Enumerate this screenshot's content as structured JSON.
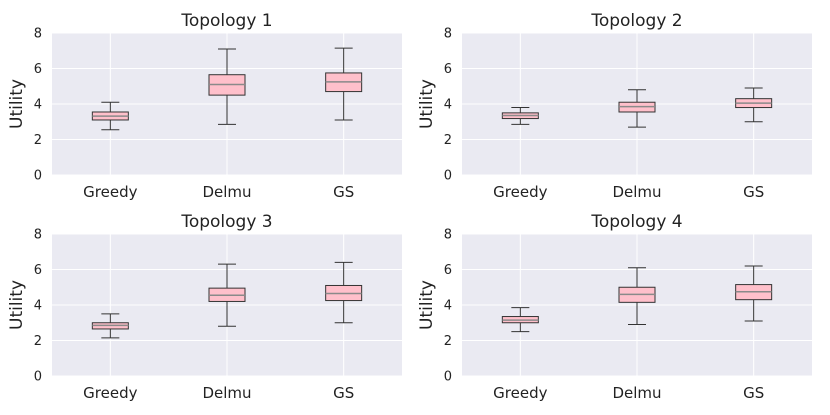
{
  "chart_data": [
    {
      "type": "box",
      "title": "Topology 1",
      "ylabel": "Utility",
      "ylim": [
        0,
        8
      ],
      "yticks": [
        "0",
        "2",
        "4",
        "6",
        "8"
      ],
      "categories": [
        "Greedy",
        "Delmu",
        "GS"
      ],
      "boxes": [
        {
          "whisker_low": 2.55,
          "q1": 3.1,
          "median": 3.32,
          "q3": 3.55,
          "whisker_high": 4.1
        },
        {
          "whisker_low": 2.85,
          "q1": 4.5,
          "median": 5.1,
          "q3": 5.65,
          "whisker_high": 7.1
        },
        {
          "whisker_low": 3.1,
          "q1": 4.7,
          "median": 5.25,
          "q3": 5.75,
          "whisker_high": 7.15
        }
      ]
    },
    {
      "type": "box",
      "title": "Topology 2",
      "ylabel": "Utility",
      "ylim": [
        0,
        8
      ],
      "yticks": [
        "0",
        "2",
        "4",
        "6",
        "8"
      ],
      "categories": [
        "Greedy",
        "Delmu",
        "GS"
      ],
      "boxes": [
        {
          "whisker_low": 2.85,
          "q1": 3.18,
          "median": 3.35,
          "q3": 3.5,
          "whisker_high": 3.8
        },
        {
          "whisker_low": 2.7,
          "q1": 3.55,
          "median": 3.85,
          "q3": 4.1,
          "whisker_high": 4.8
        },
        {
          "whisker_low": 3.0,
          "q1": 3.8,
          "median": 4.05,
          "q3": 4.3,
          "whisker_high": 4.9
        }
      ]
    },
    {
      "type": "box",
      "title": "Topology 3",
      "ylabel": "Utility",
      "ylim": [
        0,
        8
      ],
      "yticks": [
        "0",
        "2",
        "4",
        "6",
        "8"
      ],
      "categories": [
        "Greedy",
        "Delmu",
        "GS"
      ],
      "boxes": [
        {
          "whisker_low": 2.15,
          "q1": 2.65,
          "median": 2.85,
          "q3": 3.0,
          "whisker_high": 3.5
        },
        {
          "whisker_low": 2.8,
          "q1": 4.2,
          "median": 4.55,
          "q3": 4.95,
          "whisker_high": 6.3
        },
        {
          "whisker_low": 3.0,
          "q1": 4.25,
          "median": 4.65,
          "q3": 5.1,
          "whisker_high": 6.4
        }
      ]
    },
    {
      "type": "box",
      "title": "Topology 4",
      "ylabel": "Utility",
      "ylim": [
        0,
        8
      ],
      "yticks": [
        "0",
        "2",
        "4",
        "6",
        "8"
      ],
      "categories": [
        "Greedy",
        "Delmu",
        "GS"
      ],
      "boxes": [
        {
          "whisker_low": 2.5,
          "q1": 3.0,
          "median": 3.15,
          "q3": 3.35,
          "whisker_high": 3.85
        },
        {
          "whisker_low": 2.9,
          "q1": 4.15,
          "median": 4.6,
          "q3": 5.0,
          "whisker_high": 6.1
        },
        {
          "whisker_low": 3.1,
          "q1": 4.3,
          "median": 4.75,
          "q3": 5.15,
          "whisker_high": 6.2
        }
      ]
    }
  ],
  "colors": {
    "background": "#eaeaf2",
    "grid": "#ffffff",
    "box_fill": "#ffc0cb",
    "box_edge": "#333333",
    "median": "#8a8a8a"
  }
}
